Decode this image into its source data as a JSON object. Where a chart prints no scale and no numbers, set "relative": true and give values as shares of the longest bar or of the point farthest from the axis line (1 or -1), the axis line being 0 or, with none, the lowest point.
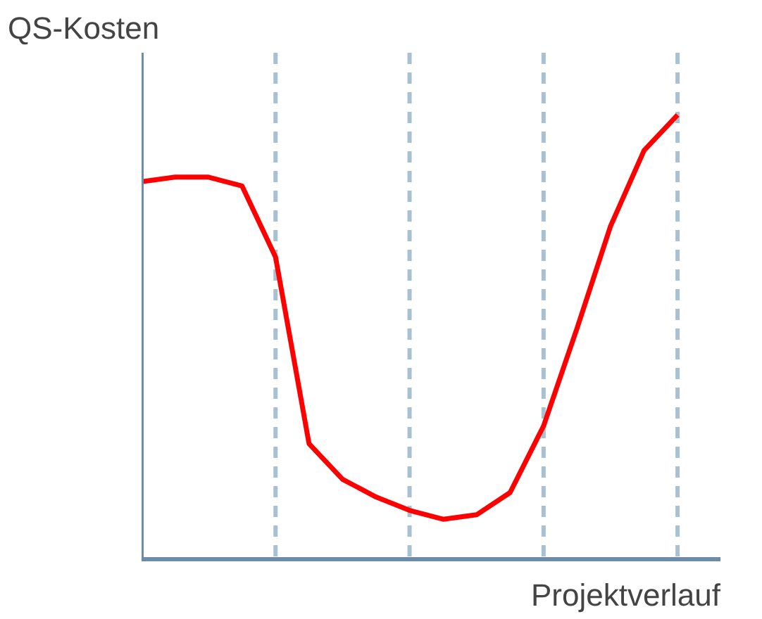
{
  "chart_data": {
    "type": "line",
    "relative": true,
    "ylabel": "QS-Kosten",
    "xlabel": "Projektverlauf",
    "categories": [
      null,
      null,
      null,
      null,
      null,
      null,
      null,
      null,
      null,
      null,
      null,
      null,
      null,
      null,
      null,
      null,
      null
    ],
    "values": [
      0.85,
      0.86,
      0.86,
      0.84,
      0.68,
      0.26,
      0.18,
      0.14,
      0.11,
      0.09,
      0.1,
      0.15,
      0.3,
      0.52,
      0.75,
      0.92,
      1
    ],
    "color": "#ff0000",
    "grid": "x"
  }
}
